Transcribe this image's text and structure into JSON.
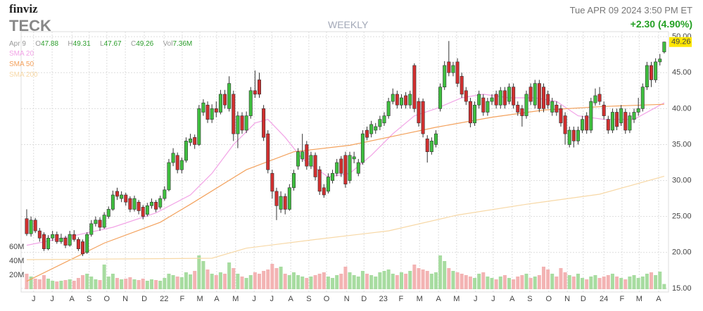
{
  "header": {
    "brand": "finviz",
    "ticker": "TECK",
    "timeframe": "WEEKLY",
    "datetime": "Tue APR 09 2024 3:50 PM ET",
    "change": "+2.30 (4.90%)"
  },
  "quote": {
    "date": "Apr 9",
    "open_label": "O",
    "high_label": "H",
    "low_label": "L",
    "close_label": "C",
    "volume_label": "Vol",
    "volume": "7.36M"
  },
  "chart_data": {
    "type": "candlestick",
    "open": [
      24.7,
      22.6,
      24.5,
      23.0,
      22.5,
      20.5,
      22.0,
      22.5,
      21.5,
      22.0,
      21.0,
      22.5,
      21.8,
      21.5,
      20.0,
      22.5,
      24.0,
      24.5,
      23.5,
      25.0,
      26.0,
      28.5,
      27.5,
      28.0,
      27.5,
      26.0,
      27.0,
      26.3,
      25.3,
      26.5,
      27.0,
      26.3,
      27.5,
      28.7,
      32.5,
      33.5,
      31.5,
      32.8,
      35.3,
      36.0,
      35.0,
      39.5,
      40.5,
      38.5,
      40.0,
      39.5,
      42.0,
      40.0,
      42.0,
      36.5,
      39.0,
      37.0,
      39.0,
      42.5,
      44.0,
      40.0,
      36.5,
      31.0,
      28.5,
      26.0,
      27.8,
      26.0,
      29.0,
      32.0,
      33.0,
      35.0,
      32.0,
      33.5,
      31.5,
      29.0,
      28.5,
      30.0,
      31.0,
      33.0,
      33.5,
      30.0,
      33.0,
      31.0,
      32.5,
      37.0,
      36.5,
      37.0,
      37.5,
      38.0,
      39.0,
      41.0,
      42.0,
      40.5,
      41.8,
      40.5,
      46.0,
      41.0,
      41.0,
      35.8,
      34.0,
      35.0,
      40.0,
      43.0,
      46.5,
      45.0,
      46.5,
      44.5,
      42.5,
      41.0,
      38.0,
      40.5,
      41.5,
      39.5,
      41.0,
      42.0,
      40.5,
      42.5,
      41.0,
      43.0,
      40.5,
      40.0,
      39.0,
      43.0,
      40.5,
      43.5,
      43.0,
      42.0,
      39.5,
      40.5,
      40.0,
      39.0,
      35.0,
      37.0,
      35.5,
      37.0,
      39.0,
      37.0,
      40.8,
      42.0,
      40.5,
      38.5,
      37.0,
      39.5,
      38.0,
      39.5,
      37.0,
      38.5,
      39.5,
      40.0,
      43.0,
      46.0,
      44.0,
      46.5,
      47.88
    ],
    "high": [
      26.0,
      25.0,
      24.8,
      23.4,
      22.8,
      22.4,
      23.0,
      22.9,
      22.6,
      22.3,
      23.0,
      23.1,
      22.1,
      21.8,
      22.8,
      24.5,
      25.0,
      24.9,
      25.6,
      26.4,
      28.6,
      29.0,
      28.5,
      28.3,
      27.8,
      27.9,
      27.3,
      26.6,
      26.9,
      27.5,
      27.3,
      27.9,
      29.2,
      33.0,
      34.5,
      33.9,
      33.2,
      36.0,
      36.5,
      36.4,
      40.5,
      41.3,
      41.0,
      40.6,
      41.0,
      42.6,
      42.6,
      44.5,
      42.5,
      39.6,
      39.5,
      39.6,
      43.0,
      45.3,
      45.0,
      40.5,
      37.0,
      31.5,
      29.0,
      28.5,
      28.2,
      29.5,
      31.5,
      34.5,
      36.5,
      35.5,
      34.0,
      33.9,
      32.0,
      29.5,
      31.0,
      31.5,
      33.0,
      33.4,
      34.0,
      34.0,
      34.0,
      33.0,
      37.0,
      37.5,
      38.3,
      38.0,
      39.0,
      39.5,
      41.5,
      42.8,
      42.5,
      42.0,
      42.3,
      42.5,
      46.3,
      41.5,
      41.4,
      36.3,
      36.0,
      37.0,
      43.5,
      46.6,
      49.4,
      46.5,
      47.0,
      45.0,
      43.0,
      41.5,
      41.0,
      42.5,
      42.0,
      41.5,
      42.0,
      42.5,
      43.0,
      43.0,
      43.5,
      43.5,
      41.0,
      40.5,
      42.5,
      43.5,
      44.0,
      44.0,
      43.5,
      42.5,
      41.5,
      41.0,
      40.5,
      39.5,
      37.5,
      37.5,
      37.5,
      39.0,
      39.5,
      41.5,
      42.8,
      43.0,
      41.0,
      39.0,
      40.0,
      40.0,
      40.5,
      40.0,
      39.5,
      40.0,
      41.5,
      43.5,
      46.5,
      46.5,
      47.0,
      47.6,
      49.31
    ],
    "low": [
      22.3,
      22.2,
      22.7,
      21.5,
      20.2,
      20.3,
      21.6,
      21.2,
      21.2,
      20.6,
      20.8,
      21.5,
      20.2,
      19.5,
      19.8,
      22.2,
      23.6,
      23.0,
      23.3,
      24.7,
      25.8,
      27.3,
      27.0,
      26.5,
      25.6,
      25.7,
      25.3,
      24.6,
      25.0,
      26.1,
      25.6,
      26.0,
      27.2,
      28.5,
      32.0,
      31.0,
      31.0,
      32.5,
      34.8,
      34.4,
      34.8,
      39.0,
      38.0,
      38.0,
      38.8,
      39.2,
      40.0,
      39.6,
      35.5,
      34.5,
      36.5,
      36.6,
      38.6,
      41.5,
      41.5,
      35.5,
      31.0,
      27.5,
      24.5,
      25.5,
      25.3,
      25.8,
      28.6,
      31.5,
      32.6,
      31.5,
      31.6,
      30.0,
      28.0,
      27.6,
      28.2,
      29.6,
      30.6,
      30.5,
      29.0,
      29.6,
      32.4,
      30.6,
      32.2,
      35.6,
      36.0,
      36.5,
      37.0,
      37.6,
      38.6,
      40.6,
      40.0,
      40.0,
      40.0,
      40.0,
      39.5,
      37.5,
      36.0,
      32.5,
      33.6,
      34.6,
      39.6,
      42.6,
      44.5,
      44.5,
      43.0,
      41.5,
      40.5,
      37.4,
      37.6,
      40.0,
      39.0,
      39.0,
      40.5,
      40.0,
      40.0,
      40.0,
      40.6,
      40.0,
      39.0,
      37.5,
      38.6,
      40.5,
      40.0,
      39.5,
      39.5,
      40.0,
      39.0,
      39.0,
      37.5,
      35.0,
      34.6,
      34.6,
      35.0,
      36.6,
      36.5,
      36.6,
      40.4,
      40.5,
      38.5,
      36.5,
      36.6,
      37.0,
      37.6,
      36.5,
      36.6,
      38.0,
      39.0,
      39.6,
      42.6,
      43.0,
      43.6,
      46.0,
      47.67
    ],
    "close": [
      22.6,
      24.5,
      23.0,
      22.0,
      20.5,
      22.0,
      22.5,
      21.5,
      22.0,
      21.0,
      22.5,
      21.8,
      20.5,
      19.8,
      22.5,
      24.0,
      24.5,
      23.5,
      25.2,
      26.0,
      28.0,
      27.8,
      28.0,
      27.0,
      26.0,
      27.5,
      25.8,
      25.0,
      26.5,
      27.0,
      26.0,
      27.5,
      28.7,
      32.5,
      33.8,
      31.5,
      32.8,
      35.5,
      35.8,
      35.0,
      40.0,
      40.8,
      38.5,
      40.0,
      39.5,
      42.0,
      40.5,
      43.5,
      36.5,
      39.0,
      37.0,
      39.0,
      42.5,
      42.0,
      42.0,
      36.0,
      31.5,
      28.5,
      26.5,
      27.8,
      26.0,
      29.0,
      31.0,
      34.0,
      34.0,
      32.0,
      33.5,
      30.5,
      28.5,
      28.0,
      30.5,
      31.0,
      32.5,
      31.0,
      29.5,
      33.5,
      33.3,
      32.5,
      36.5,
      36.0,
      37.8,
      37.5,
      38.5,
      39.0,
      41.0,
      42.0,
      40.5,
      41.5,
      40.5,
      42.0,
      40.0,
      38.0,
      36.5,
      34.0,
      35.5,
      36.5,
      43.0,
      46.0,
      45.0,
      46.0,
      43.5,
      42.0,
      41.0,
      38.0,
      40.5,
      42.0,
      39.5,
      41.0,
      41.5,
      40.5,
      42.5,
      40.5,
      43.0,
      40.5,
      39.5,
      39.0,
      42.0,
      41.0,
      43.5,
      40.0,
      40.0,
      40.5,
      41.0,
      39.5,
      38.0,
      36.5,
      37.0,
      35.5,
      37.0,
      38.5,
      37.0,
      41.0,
      41.8,
      41.0,
      39.0,
      37.0,
      39.5,
      37.5,
      40.0,
      37.0,
      39.0,
      39.5,
      40.0,
      43.0,
      46.0,
      44.0,
      46.5,
      46.9,
      49.26
    ],
    "volume": [
      22,
      18,
      15,
      14,
      20,
      15,
      12,
      11,
      12,
      13,
      14,
      12,
      16,
      20,
      22,
      18,
      14,
      13,
      35,
      18,
      22,
      16,
      14,
      15,
      17,
      14,
      13,
      15,
      12,
      14,
      13,
      12,
      16,
      22,
      20,
      18,
      17,
      24,
      21,
      26,
      48,
      40,
      28,
      22,
      20,
      24,
      22,
      38,
      30,
      22,
      18,
      16,
      20,
      24,
      22,
      26,
      28,
      36,
      30,
      32,
      22,
      20,
      24,
      20,
      18,
      16,
      18,
      20,
      22,
      24,
      18,
      16,
      20,
      22,
      32,
      24,
      20,
      18,
      26,
      22,
      20,
      18,
      24,
      26,
      28,
      22,
      20,
      24,
      22,
      26,
      35,
      30,
      28,
      26,
      22,
      24,
      48,
      40,
      30,
      26,
      24,
      22,
      20,
      18,
      16,
      22,
      24,
      18,
      16,
      14,
      18,
      20,
      16,
      14,
      18,
      20,
      22,
      16,
      18,
      20,
      32,
      28,
      22,
      18,
      30,
      24,
      20,
      18,
      22,
      16,
      14,
      18,
      20,
      16,
      18,
      20,
      22,
      18,
      16,
      14,
      18,
      20,
      16,
      18,
      22,
      24,
      20,
      25,
      7.36
    ],
    "up_color": "#3fbf3f",
    "down_color": "#d12f2f",
    "up_volume_color": "#a7dca0",
    "down_volume_color": "#f3b3b3",
    "xlim": [
      -1.3,
      149
    ],
    "xticks": [
      {
        "value": 1.6,
        "label": "J"
      },
      {
        "value": 5.9,
        "label": "J"
      },
      {
        "value": 10.5,
        "label": "A"
      },
      {
        "value": 14.5,
        "label": "S"
      },
      {
        "value": 18.6,
        "label": "O"
      },
      {
        "value": 22.9,
        "label": "N"
      },
      {
        "value": 27.3,
        "label": "D"
      },
      {
        "value": 31.9,
        "label": "22"
      },
      {
        "value": 36.1,
        "label": "F"
      },
      {
        "value": 40.2,
        "label": "M"
      },
      {
        "value": 44.1,
        "label": "A"
      },
      {
        "value": 48.5,
        "label": "M"
      },
      {
        "value": 52.8,
        "label": "J"
      },
      {
        "value": 56.9,
        "label": "J"
      },
      {
        "value": 61.3,
        "label": "A"
      },
      {
        "value": 65.5,
        "label": "S"
      },
      {
        "value": 69.6,
        "label": "O"
      },
      {
        "value": 74.3,
        "label": "N"
      },
      {
        "value": 78.3,
        "label": "D"
      },
      {
        "value": 82.8,
        "label": "23"
      },
      {
        "value": 86.9,
        "label": "F"
      },
      {
        "value": 91.2,
        "label": "M"
      },
      {
        "value": 95.6,
        "label": "A"
      },
      {
        "value": 99.8,
        "label": "M"
      },
      {
        "value": 104.2,
        "label": "J"
      },
      {
        "value": 108.3,
        "label": "J"
      },
      {
        "value": 112.7,
        "label": "A"
      },
      {
        "value": 116.8,
        "label": "S"
      },
      {
        "value": 121.2,
        "label": "O"
      },
      {
        "value": 125.5,
        "label": "N"
      },
      {
        "value": 129.2,
        "label": "D"
      },
      {
        "value": 134.0,
        "label": "24"
      },
      {
        "value": 138.2,
        "label": "F"
      },
      {
        "value": 142.2,
        "label": "M"
      },
      {
        "value": 146.7,
        "label": "A"
      }
    ],
    "ylim": [
      14.5,
      50.7
    ],
    "yticks": [
      {
        "value": 15,
        "label": "15.00"
      },
      {
        "value": 20,
        "label": "20.00"
      },
      {
        "value": 25,
        "label": "25.00"
      },
      {
        "value": 30,
        "label": "30.00"
      },
      {
        "value": 35,
        "label": "35.00"
      },
      {
        "value": 40,
        "label": "40.00"
      },
      {
        "value": 45,
        "label": "45.00"
      },
      {
        "value": 50,
        "label": "50.00"
      }
    ],
    "y2lim": [
      0,
      60
    ],
    "y2ticks": [
      {
        "value": 20,
        "label": "20M"
      },
      {
        "value": 40,
        "label": "40M"
      },
      {
        "value": 60,
        "label": "60M"
      }
    ],
    "grid": true,
    "overlays": [
      {
        "name": "SMA 20",
        "color": "#f2a3e6",
        "x": [
          0,
          10,
          20,
          30,
          38,
          43,
          48,
          53,
          56,
          60,
          64,
          70,
          75,
          80,
          85,
          90,
          95,
          101,
          106,
          112,
          118,
          123,
          128,
          134,
          141,
          148
        ],
        "values": [
          21.0,
          22.2,
          23.5,
          25.5,
          28.0,
          31.0,
          35.0,
          38.0,
          38.5,
          36.0,
          33.0,
          30.5,
          31.0,
          33.5,
          36.5,
          39.0,
          40.0,
          41.5,
          42.0,
          41.5,
          41.5,
          41.0,
          39.0,
          38.5,
          38.5,
          40.8
        ]
      },
      {
        "name": "SMA 50",
        "color": "#f3a15c",
        "x": [
          0,
          18,
          31,
          38,
          51,
          62,
          75,
          87,
          95,
          108,
          120,
          134,
          148
        ],
        "values": [
          16.0,
          21.3,
          24.2,
          26.7,
          31.5,
          34.0,
          34.9,
          36.4,
          37.4,
          38.8,
          39.8,
          40.3,
          40.6
        ]
      },
      {
        "name": "SMA 200",
        "color": "#f7d8a6",
        "x": [
          0,
          43,
          51,
          67,
          84,
          100,
          116,
          133,
          148
        ],
        "values": [
          19.0,
          19.2,
          20.6,
          21.8,
          23.0,
          25.2,
          26.7,
          28.1,
          30.6
        ]
      }
    ]
  }
}
